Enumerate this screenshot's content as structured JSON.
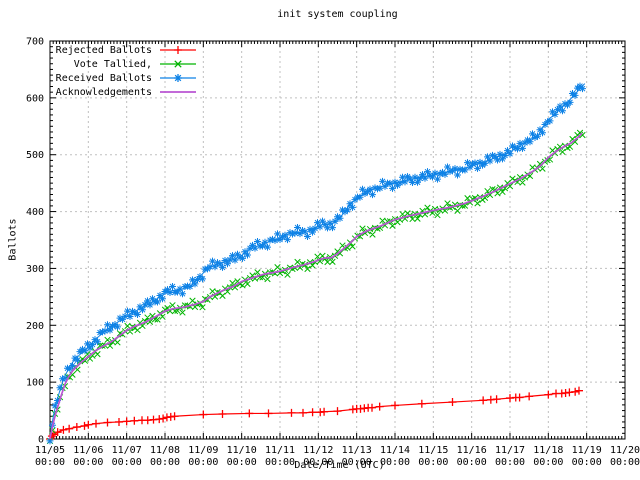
{
  "chart_data": {
    "type": "line",
    "title": "init system coupling",
    "xlabel": "Date/Time (UTC)",
    "ylabel": "Ballots",
    "xlim_days": [
      0,
      15
    ],
    "ylim": [
      0,
      700
    ],
    "y_tick_step": 100,
    "y_minor_step": 10,
    "x_minor_step_days": 0.08333,
    "grid": true,
    "legend_position": "top-left",
    "x_tick_dates": [
      "11/05",
      "11/06",
      "11/07",
      "11/08",
      "11/09",
      "11/10",
      "11/11",
      "11/12",
      "11/13",
      "11/14",
      "11/15",
      "11/16",
      "11/17",
      "11/18",
      "11/19",
      "11/20"
    ],
    "x_tick_time": "00:00",
    "colors": {
      "rejected": "#ff0000",
      "tallied": "#00b400",
      "received": "#0e82e6",
      "acknowledgements": "#ba55d3",
      "grid": "#c0c0c0",
      "axis": "#000000"
    },
    "series": [
      {
        "name": "Rejected Ballots",
        "color": "#ff0000",
        "marker": "plus",
        "style": "linespoints",
        "points": [
          [
            0,
            0
          ],
          [
            0.05,
            5
          ],
          [
            0.1,
            8
          ],
          [
            0.2,
            12
          ],
          [
            0.35,
            16
          ],
          [
            0.5,
            18
          ],
          [
            0.7,
            21
          ],
          [
            0.9,
            23
          ],
          [
            1.0,
            25
          ],
          [
            1.2,
            27
          ],
          [
            1.5,
            29
          ],
          [
            1.8,
            30
          ],
          [
            2.0,
            31
          ],
          [
            2.2,
            32
          ],
          [
            2.4,
            33
          ],
          [
            2.55,
            33
          ],
          [
            2.7,
            34
          ],
          [
            2.85,
            35
          ],
          [
            2.95,
            36
          ],
          [
            3.05,
            38
          ],
          [
            3.15,
            39
          ],
          [
            3.25,
            40
          ],
          [
            4.0,
            43
          ],
          [
            4.5,
            44
          ],
          [
            5.2,
            45
          ],
          [
            5.7,
            45
          ],
          [
            6.3,
            46
          ],
          [
            6.6,
            46
          ],
          [
            6.85,
            47
          ],
          [
            7.05,
            47
          ],
          [
            7.15,
            48
          ],
          [
            7.5,
            49
          ],
          [
            7.9,
            52
          ],
          [
            8.0,
            53
          ],
          [
            8.1,
            53
          ],
          [
            8.2,
            54
          ],
          [
            8.3,
            55
          ],
          [
            8.4,
            55
          ],
          [
            8.6,
            57
          ],
          [
            9.0,
            59
          ],
          [
            9.7,
            62
          ],
          [
            10.5,
            65
          ],
          [
            11.3,
            68
          ],
          [
            11.5,
            69
          ],
          [
            11.65,
            70
          ],
          [
            12.0,
            72
          ],
          [
            12.15,
            73
          ],
          [
            12.25,
            73
          ],
          [
            12.5,
            75
          ],
          [
            13.0,
            78
          ],
          [
            13.2,
            80
          ],
          [
            13.35,
            80
          ],
          [
            13.45,
            81
          ],
          [
            13.55,
            82
          ],
          [
            13.7,
            83
          ],
          [
            13.8,
            85
          ]
        ]
      },
      {
        "name": "Vote Tallied,",
        "color": "#00b400",
        "marker": "cross",
        "style": "marker-band",
        "points": [
          [
            0,
            0
          ],
          [
            0.05,
            18
          ],
          [
            0.1,
            32
          ],
          [
            0.15,
            45
          ],
          [
            0.2,
            56
          ],
          [
            0.3,
            78
          ],
          [
            0.4,
            98
          ],
          [
            0.5,
            111
          ],
          [
            0.6,
            120
          ],
          [
            0.8,
            133
          ],
          [
            1.0,
            144
          ],
          [
            1.2,
            155
          ],
          [
            1.4,
            163
          ],
          [
            1.6,
            170
          ],
          [
            1.8,
            180
          ],
          [
            2.0,
            190
          ],
          [
            2.2,
            197
          ],
          [
            2.5,
            205
          ],
          [
            2.8,
            216
          ],
          [
            3.0,
            224
          ],
          [
            3.2,
            228
          ],
          [
            3.5,
            231
          ],
          [
            3.8,
            236
          ],
          [
            4.0,
            241
          ],
          [
            4.2,
            250
          ],
          [
            4.5,
            260
          ],
          [
            4.8,
            268
          ],
          [
            5.0,
            276
          ],
          [
            5.3,
            283
          ],
          [
            5.6,
            289
          ],
          [
            6.0,
            294
          ],
          [
            6.3,
            300
          ],
          [
            6.6,
            305
          ],
          [
            6.9,
            311
          ],
          [
            7.0,
            314
          ],
          [
            7.15,
            317
          ],
          [
            7.35,
            318
          ],
          [
            7.5,
            325
          ],
          [
            7.7,
            336
          ],
          [
            7.9,
            348
          ],
          [
            8.0,
            355
          ],
          [
            8.15,
            361
          ],
          [
            8.3,
            366
          ],
          [
            8.6,
            373
          ],
          [
            9.0,
            385
          ],
          [
            9.4,
            392
          ],
          [
            9.8,
            398
          ],
          [
            10.0,
            401
          ],
          [
            10.4,
            406
          ],
          [
            10.8,
            413
          ],
          [
            11.0,
            418
          ],
          [
            11.3,
            426
          ],
          [
            11.6,
            435
          ],
          [
            12.0,
            448
          ],
          [
            12.3,
            458
          ],
          [
            12.6,
            470
          ],
          [
            12.8,
            480
          ],
          [
            13.0,
            494
          ],
          [
            13.2,
            505
          ],
          [
            13.4,
            513
          ],
          [
            13.6,
            520
          ],
          [
            13.75,
            528
          ],
          [
            13.9,
            540
          ]
        ]
      },
      {
        "name": "Received Ballots",
        "color": "#0e82e6",
        "marker": "asterisk",
        "style": "marker-band",
        "points": [
          [
            0,
            0
          ],
          [
            0.05,
            25
          ],
          [
            0.1,
            45
          ],
          [
            0.15,
            60
          ],
          [
            0.2,
            72
          ],
          [
            0.3,
            95
          ],
          [
            0.4,
            112
          ],
          [
            0.5,
            126
          ],
          [
            0.6,
            136
          ],
          [
            0.8,
            150
          ],
          [
            1.0,
            162
          ],
          [
            1.2,
            176
          ],
          [
            1.4,
            188
          ],
          [
            1.6,
            198
          ],
          [
            1.8,
            207
          ],
          [
            2.0,
            216
          ],
          [
            2.2,
            224
          ],
          [
            2.5,
            234
          ],
          [
            2.8,
            247
          ],
          [
            3.0,
            256
          ],
          [
            3.2,
            261
          ],
          [
            3.5,
            264
          ],
          [
            3.7,
            270
          ],
          [
            3.9,
            285
          ],
          [
            4.0,
            292
          ],
          [
            4.1,
            300
          ],
          [
            4.3,
            306
          ],
          [
            4.5,
            310
          ],
          [
            4.8,
            316
          ],
          [
            5.0,
            323
          ],
          [
            5.2,
            333
          ],
          [
            5.5,
            342
          ],
          [
            5.8,
            349
          ],
          [
            6.0,
            353
          ],
          [
            6.2,
            360
          ],
          [
            6.4,
            363
          ],
          [
            6.7,
            364
          ],
          [
            6.9,
            370
          ],
          [
            7.0,
            374
          ],
          [
            7.1,
            377
          ],
          [
            7.35,
            378
          ],
          [
            7.5,
            386
          ],
          [
            7.65,
            396
          ],
          [
            7.8,
            410
          ],
          [
            7.95,
            420
          ],
          [
            8.1,
            428
          ],
          [
            8.3,
            436
          ],
          [
            8.5,
            441
          ],
          [
            8.7,
            445
          ],
          [
            9.0,
            450
          ],
          [
            9.3,
            455
          ],
          [
            9.6,
            459
          ],
          [
            10.0,
            464
          ],
          [
            10.4,
            470
          ],
          [
            10.7,
            474
          ],
          [
            11.0,
            480
          ],
          [
            11.3,
            487
          ],
          [
            11.6,
            494
          ],
          [
            12.0,
            505
          ],
          [
            12.2,
            513
          ],
          [
            12.4,
            523
          ],
          [
            12.55,
            528
          ],
          [
            12.7,
            530
          ],
          [
            12.85,
            547
          ],
          [
            13.0,
            562
          ],
          [
            13.15,
            570
          ],
          [
            13.3,
            580
          ],
          [
            13.5,
            592
          ],
          [
            13.7,
            607
          ],
          [
            13.85,
            618
          ],
          [
            13.95,
            625
          ]
        ]
      },
      {
        "name": "Acknowledgements",
        "color": "#ba55d3",
        "marker": "none",
        "style": "line",
        "points": [
          [
            0,
            0
          ],
          [
            0.05,
            18
          ],
          [
            0.1,
            32
          ],
          [
            0.15,
            45
          ],
          [
            0.2,
            56
          ],
          [
            0.3,
            78
          ],
          [
            0.4,
            98
          ],
          [
            0.5,
            111
          ],
          [
            0.6,
            121
          ],
          [
            0.8,
            134
          ],
          [
            1.0,
            145
          ],
          [
            1.2,
            156
          ],
          [
            1.4,
            164
          ],
          [
            1.6,
            171
          ],
          [
            1.8,
            181
          ],
          [
            2.0,
            191
          ],
          [
            2.2,
            198
          ],
          [
            2.5,
            206
          ],
          [
            2.8,
            217
          ],
          [
            3.0,
            225
          ],
          [
            3.2,
            229
          ],
          [
            3.5,
            232
          ],
          [
            3.8,
            237
          ],
          [
            4.0,
            242
          ],
          [
            4.2,
            251
          ],
          [
            4.5,
            261
          ],
          [
            4.8,
            269
          ],
          [
            5.0,
            277
          ],
          [
            5.3,
            284
          ],
          [
            5.6,
            290
          ],
          [
            6.0,
            295
          ],
          [
            6.3,
            301
          ],
          [
            6.6,
            306
          ],
          [
            6.9,
            312
          ],
          [
            7.0,
            315
          ],
          [
            7.15,
            318
          ],
          [
            7.35,
            319
          ],
          [
            7.5,
            326
          ],
          [
            7.7,
            337
          ],
          [
            7.9,
            349
          ],
          [
            8.0,
            356
          ],
          [
            8.15,
            362
          ],
          [
            8.3,
            367
          ],
          [
            8.6,
            374
          ],
          [
            9.0,
            386
          ],
          [
            9.4,
            393
          ],
          [
            9.8,
            399
          ],
          [
            10.0,
            402
          ],
          [
            10.4,
            407
          ],
          [
            10.8,
            414
          ],
          [
            11.0,
            419
          ],
          [
            11.3,
            427
          ],
          [
            11.6,
            436
          ],
          [
            12.0,
            449
          ],
          [
            12.3,
            459
          ],
          [
            12.6,
            471
          ],
          [
            12.8,
            481
          ],
          [
            13.0,
            495
          ],
          [
            13.2,
            506
          ],
          [
            13.4,
            514
          ],
          [
            13.6,
            521
          ],
          [
            13.75,
            529
          ],
          [
            13.88,
            538
          ]
        ]
      }
    ]
  }
}
